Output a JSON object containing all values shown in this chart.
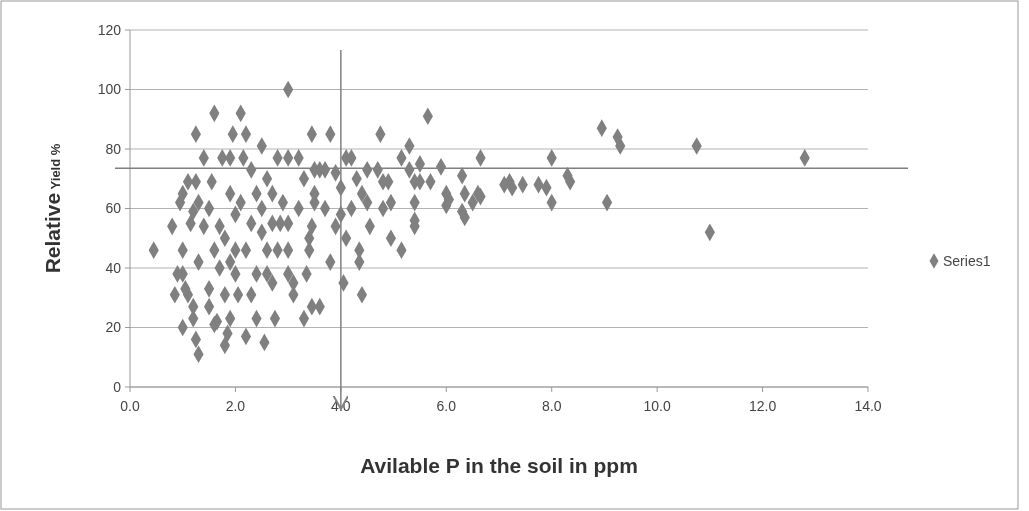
{
  "chart_data": {
    "type": "scatter",
    "xlabel": "Avilable  P  in the soil in  ppm",
    "ylabel": "Relative Yield %",
    "xlim": [
      0,
      14
    ],
    "ylim": [
      0,
      120
    ],
    "xticks": [
      {
        "value": 0,
        "label": "0.0"
      },
      {
        "value": 2,
        "label": "2.0"
      },
      {
        "value": 4,
        "label": "4.0"
      },
      {
        "value": 6,
        "label": "6.0"
      },
      {
        "value": 8,
        "label": "8.0"
      },
      {
        "value": 10,
        "label": "10.0"
      },
      {
        "value": 12,
        "label": "12.0"
      },
      {
        "value": 14,
        "label": "14.0"
      }
    ],
    "yticks": [
      0,
      20,
      40,
      60,
      80,
      100,
      120
    ],
    "grid": "y",
    "legend": "right",
    "marker": "diamond",
    "ref_lines": [
      {
        "axis": "y",
        "value": 73.5,
        "color": "#808080"
      },
      {
        "axis": "x",
        "value": 4,
        "color": "#808080"
      }
    ],
    "series": [
      {
        "name": "Series1",
        "color": "#808080",
        "x": [
          4.75,
          4.5,
          4.7,
          4.8,
          4.9,
          4.8,
          4.95,
          4.95,
          5.15,
          5.15,
          5.3,
          5.3,
          5.4,
          5.4,
          5.4,
          5.4,
          5.5,
          5.5,
          5.65,
          5.7,
          5.9,
          6.0,
          6.0,
          6.05,
          6.3,
          6.35,
          6.3,
          6.35,
          6.5,
          6.6,
          6.65,
          6.65,
          7.1,
          7.2,
          7.25,
          7.45,
          7.75,
          7.9,
          8.0,
          8.0,
          8.3,
          8.35,
          8.95,
          9.05,
          9.25,
          9.3,
          10.75,
          11.0,
          12.8,
          4.55,
          4.35,
          4.35,
          4.4,
          4.1,
          4.05,
          4.2,
          4.1,
          4.3,
          4.4,
          4.5,
          4.2,
          4.0,
          3.9,
          3.8,
          3.8,
          3.6,
          3.45,
          3.45,
          3.3,
          3.35,
          3.1,
          3.0,
          3.1,
          3.2,
          3.0,
          3.5,
          3.6,
          3.5,
          3.5,
          3.45,
          3.4,
          3.4,
          3.7,
          3.7,
          3.9,
          4.0,
          0.45,
          0.8,
          0.9,
          0.85,
          0.95,
          1.0,
          1.0,
          1.0,
          1.0,
          1.05,
          1.1,
          1.1,
          1.15,
          1.2,
          1.2,
          1.25,
          1.3,
          1.25,
          1.25,
          1.3,
          1.3,
          1.4,
          1.4,
          1.5,
          1.5,
          1.55,
          1.6,
          1.6,
          1.6,
          1.65,
          1.7,
          1.7,
          1.75,
          1.8,
          1.8,
          1.85,
          1.9,
          1.9,
          1.9,
          1.95,
          2.0,
          2.0,
          2.05,
          2.1,
          2.1,
          2.15,
          2.2,
          2.2,
          2.3,
          2.3,
          2.4,
          2.4,
          2.5,
          2.5,
          2.55,
          2.6,
          2.6,
          2.7,
          2.7,
          2.75,
          2.8,
          2.8,
          2.85,
          2.9,
          3.0,
          3.0,
          3.0,
          2.3,
          2.0,
          1.8,
          1.5,
          2.6,
          2.2,
          2.7,
          3.2,
          3.3,
          1.2,
          2.4,
          1.9,
          2.5
        ],
        "values": [
          85,
          73,
          73,
          69,
          69,
          60,
          62,
          50,
          46,
          77,
          81,
          73,
          69,
          62,
          56,
          54,
          75,
          69,
          91,
          69,
          74,
          61,
          65,
          63,
          71,
          65,
          59,
          57,
          62,
          65,
          64,
          77,
          68,
          69,
          67,
          68,
          68,
          67,
          62,
          77,
          71,
          69,
          87,
          62,
          84,
          81,
          81,
          52,
          77,
          54,
          46,
          42,
          31,
          50,
          35,
          77,
          77,
          70,
          65,
          62,
          60,
          58,
          54,
          42,
          85,
          27,
          27,
          85,
          23,
          38,
          31,
          100,
          35,
          77,
          77,
          73,
          73,
          65,
          62,
          54,
          50,
          46,
          60,
          73,
          72,
          67,
          46,
          54,
          38,
          31,
          62,
          65,
          46,
          38,
          20,
          33,
          31,
          69,
          55,
          27,
          23,
          16,
          11,
          85,
          69,
          42,
          62,
          54,
          77,
          33,
          27,
          69,
          92,
          46,
          21,
          22,
          54,
          40,
          77,
          14,
          31,
          18,
          23,
          65,
          77,
          85,
          38,
          46,
          31,
          92,
          62,
          77,
          85,
          17,
          31,
          55,
          23,
          38,
          81,
          60,
          15,
          46,
          38,
          35,
          65,
          23,
          77,
          46,
          55,
          62,
          46,
          55,
          38,
          73,
          58,
          50,
          60,
          70,
          46,
          55,
          60,
          70,
          59,
          65,
          42,
          52
        ]
      }
    ]
  }
}
